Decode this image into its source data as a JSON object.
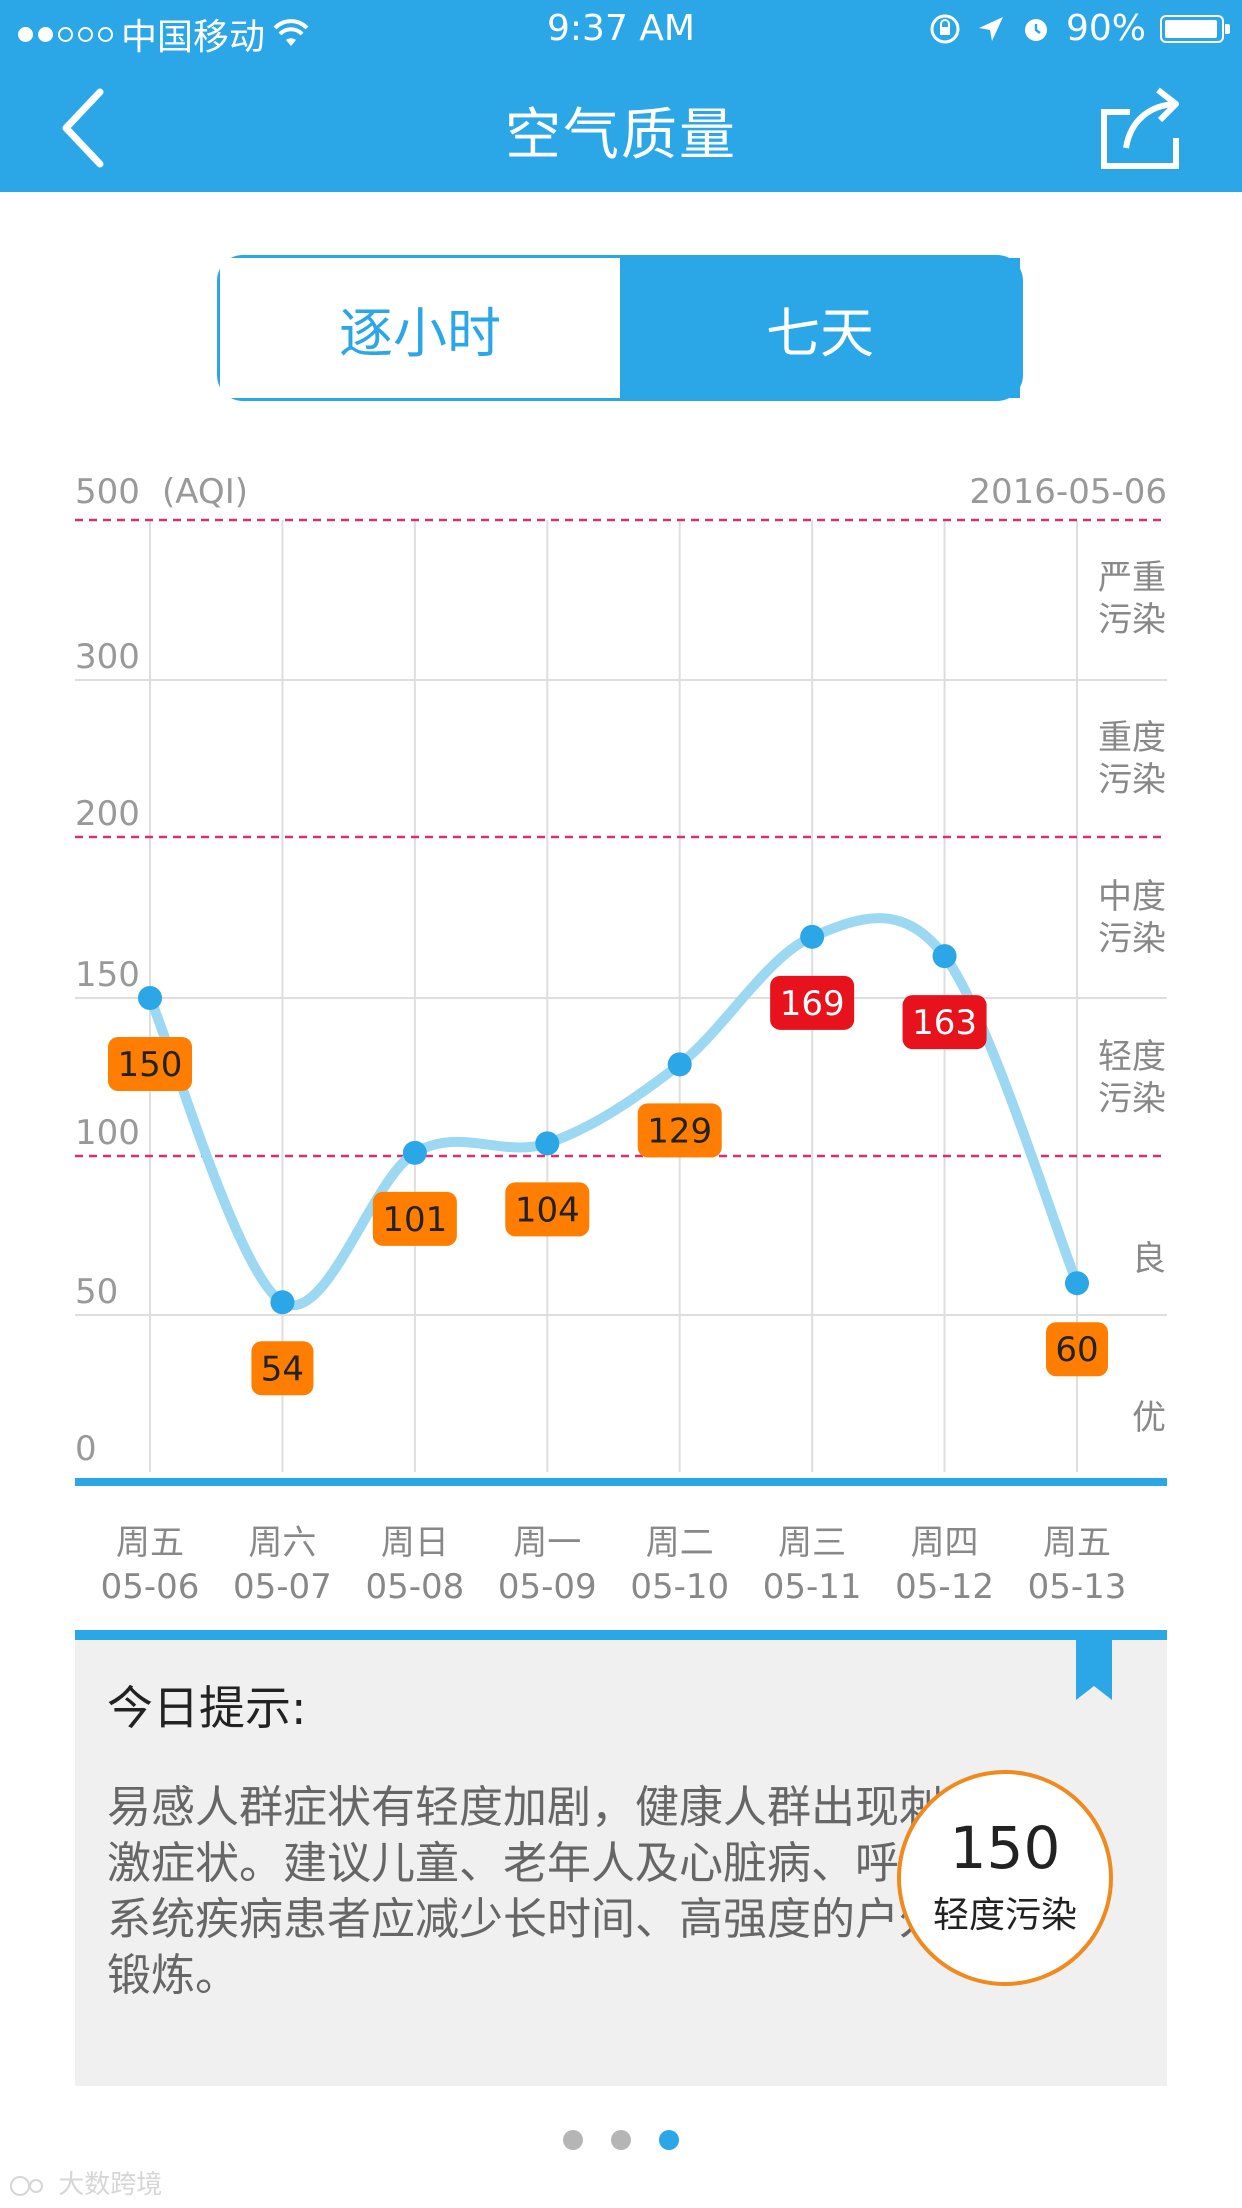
{
  "status_bar": {
    "carrier": "中国移动",
    "time": "9:37 AM",
    "battery": "90%"
  },
  "nav": {
    "title": "空气质量"
  },
  "tabs": {
    "hourly": "逐小时",
    "seven_day": "七天",
    "active": "seven_day"
  },
  "chart_data": {
    "type": "line",
    "unit_label": "(AQI)",
    "date_label": "2016-05-06",
    "y_tick_labels": [
      {
        "value": 0,
        "label": "0"
      },
      {
        "value": 50,
        "label": "50"
      },
      {
        "value": 100,
        "label": "100"
      },
      {
        "value": 150,
        "label": "150"
      },
      {
        "value": 200,
        "label": "200"
      },
      {
        "value": 300,
        "label": "300"
      },
      {
        "value": 500,
        "label": "500"
      }
    ],
    "ylim": [
      0,
      500
    ],
    "days": [
      "周五",
      "周六",
      "周日",
      "周一",
      "周二",
      "周三",
      "周四",
      "周五"
    ],
    "dates": [
      "05-06",
      "05-07",
      "05-08",
      "05-09",
      "05-10",
      "05-11",
      "05-12",
      "05-13"
    ],
    "values": [
      150,
      54,
      101,
      104,
      129,
      169,
      163,
      60
    ],
    "thresholds_dashed": [
      100,
      200,
      500
    ],
    "levels": [
      {
        "label": "优",
        "color": "#ffff00",
        "text_color": "#222222"
      },
      {
        "label": "良"
      },
      {
        "label": "轻度污染",
        "color": "#ff7e00",
        "text_color": "#222222"
      },
      {
        "label": "中度污染",
        "color": "#e8121c",
        "text_color": "#ffffff"
      },
      {
        "label": "重度污染"
      },
      {
        "label": "严重污染"
      }
    ],
    "line_color": "#9dd8f2",
    "point_color": "#2ba6e6"
  },
  "tip": {
    "heading": "今日提示:",
    "text": "易感人群症状有轻度加剧，健康人群出现刺激症状。建议儿童、老年人及心脏病、呼吸系统疾病患者应减少长时间、高强度的户外锻炼。",
    "aqi": "150",
    "level": "轻度污染"
  },
  "pager": {
    "count": 3,
    "active": 2
  },
  "watermark": "大数跨境"
}
